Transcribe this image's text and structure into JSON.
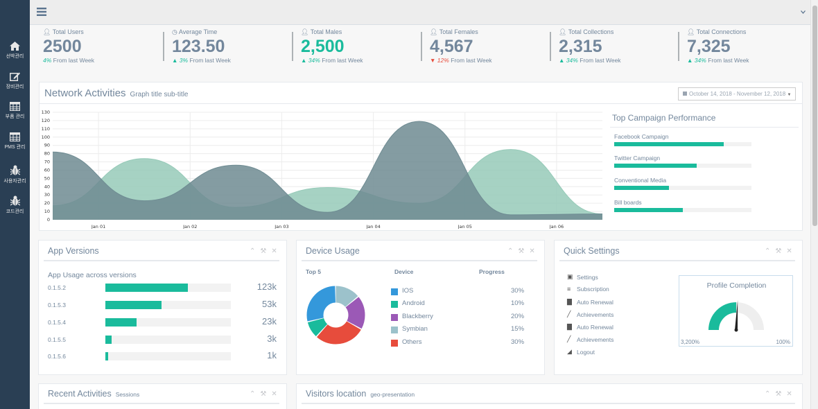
{
  "sidebar": {
    "items": [
      {
        "label": "선박관리",
        "icon": "home-icon"
      },
      {
        "label": "장비관리",
        "icon": "edit-icon"
      },
      {
        "label": "부품 관리",
        "icon": "table-icon"
      },
      {
        "label": "PMS 관리",
        "icon": "table-icon"
      },
      {
        "label": "사용자관리",
        "icon": "bug-icon"
      },
      {
        "label": "코드관리",
        "icon": "bug-icon"
      }
    ]
  },
  "topbar": {
    "menu_icon": "hamburger-icon",
    "caret_icon": "chevron-down-icon"
  },
  "tiles": [
    {
      "label": "Total Users",
      "icon": "user-icon",
      "value": "2500",
      "change": "4%",
      "change_text": "From last Week",
      "trend": "none"
    },
    {
      "label": "Average Time",
      "icon": "clock-icon",
      "value": "123.50",
      "change": "3%",
      "change_text": "From last Week",
      "trend": "up"
    },
    {
      "label": "Total Males",
      "icon": "user-icon",
      "value": "2,500",
      "change": "34%",
      "change_text": "From last Week",
      "trend": "up"
    },
    {
      "label": "Total Females",
      "icon": "user-icon",
      "value": "4,567",
      "change": "12%",
      "change_text": "From last Week",
      "trend": "down"
    },
    {
      "label": "Total Collections",
      "icon": "user-icon",
      "value": "2,315",
      "change": "34%",
      "change_text": "From last Week",
      "trend": "up"
    },
    {
      "label": "Total Connections",
      "icon": "user-icon",
      "value": "7,325",
      "change": "34%",
      "change_text": "From last Week",
      "trend": "up"
    }
  ],
  "network": {
    "title": "Network Activities",
    "subtitle": "Graph title sub-title",
    "date_range": "October 14, 2018 - November 12, 2018"
  },
  "chart_data": {
    "type": "area",
    "x_ticks": [
      "Jan 01",
      "Jan 02",
      "Jan 03",
      "Jan 04",
      "Jan 05",
      "Jan 06"
    ],
    "y_ticks": [
      0,
      10,
      20,
      30,
      40,
      50,
      60,
      70,
      80,
      90,
      100,
      110,
      120,
      130
    ],
    "ylim": [
      0,
      130
    ],
    "grid": true,
    "series": [
      {
        "color": "#96cab8",
        "x": [
          0,
          1,
          2,
          3,
          4,
          5,
          6
        ],
        "values": [
          17,
          74,
          15,
          39,
          20,
          85,
          7
        ]
      },
      {
        "color": "#6e8b92",
        "x": [
          0,
          1,
          2,
          3,
          4,
          5,
          6
        ],
        "values": [
          82,
          23,
          66,
          9,
          119,
          6,
          7
        ]
      }
    ]
  },
  "campaign": {
    "title": "Top Campaign Performance",
    "items": [
      {
        "label": "Facebook Campaign",
        "percent": 80
      },
      {
        "label": "Twitter Campaign",
        "percent": 60
      },
      {
        "label": "Conventional Media",
        "percent": 40
      },
      {
        "label": "Bill boards",
        "percent": 50
      }
    ]
  },
  "app_versions": {
    "title": "App Versions",
    "subtitle": "App Usage across versions",
    "rows": [
      {
        "version": "0.1.5.2",
        "percent": 66,
        "count": "123k"
      },
      {
        "version": "0.1.5.3",
        "percent": 45,
        "count": "53k"
      },
      {
        "version": "0.1.5.4",
        "percent": 25,
        "count": "23k"
      },
      {
        "version": "0.1.5.5",
        "percent": 5,
        "count": "3k"
      },
      {
        "version": "0.1.5.6",
        "percent": 2,
        "count": "1k"
      }
    ]
  },
  "device_usage": {
    "title": "Device Usage",
    "col_top": "Top 5",
    "col_device": "Device",
    "col_progress": "Progress",
    "devices": [
      {
        "name": "IOS",
        "percent": "30%",
        "share": 30,
        "color": "#3498db"
      },
      {
        "name": "Android",
        "percent": "10%",
        "share": 10,
        "color": "#1abb9c"
      },
      {
        "name": "Blackberry",
        "percent": "20%",
        "share": 20,
        "color": "#9b59b6"
      },
      {
        "name": "Symbian",
        "percent": "15%",
        "share": 15,
        "color": "#9cc2cb"
      },
      {
        "name": "Others",
        "percent": "30%",
        "share": 30,
        "color": "#e74c3c"
      }
    ]
  },
  "quick_settings": {
    "title": "Quick Settings",
    "items": [
      {
        "label": "Settings",
        "icon": "calendar-icon"
      },
      {
        "label": "Subscription",
        "icon": "list-icon"
      },
      {
        "label": "Auto Renewal",
        "icon": "bar-chart-icon"
      },
      {
        "label": "Achievements",
        "icon": "line-chart-icon"
      },
      {
        "label": "Auto Renewal",
        "icon": "bar-chart-icon"
      },
      {
        "label": "Achievements",
        "icon": "line-chart-icon"
      },
      {
        "label": "Logout",
        "icon": "area-chart-icon"
      }
    ],
    "profile_title": "Profile Completion",
    "gauge_min": "3,200%",
    "gauge_max": "100%",
    "gauge_value": 0.5
  },
  "recent": {
    "title": "Recent Activities",
    "subtitle": "Sessions"
  },
  "visitors": {
    "title": "Visitors location",
    "subtitle": "geo-presentation"
  },
  "colors": {
    "accent": "#1abb9c",
    "sidebar": "#2a3f54",
    "danger": "#e74c3c"
  }
}
